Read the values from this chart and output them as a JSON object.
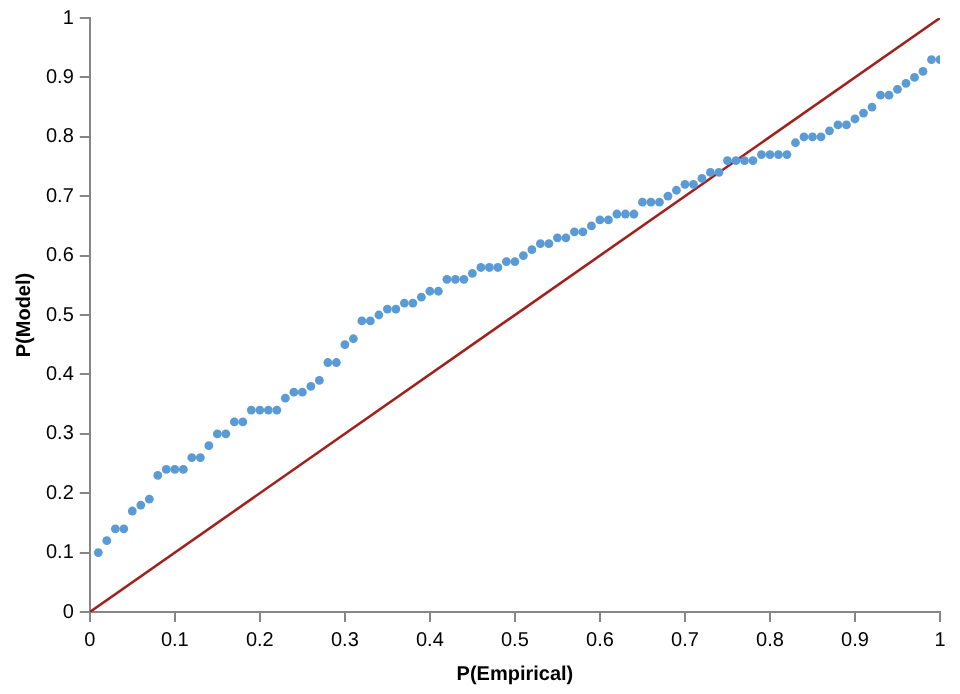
{
  "chart_data": {
    "type": "scatter",
    "xlabel": "P(Empirical)",
    "ylabel": "P(Model)",
    "xlim": [
      0,
      1
    ],
    "ylim": [
      0,
      1
    ],
    "xticks": [
      0,
      0.1,
      0.2,
      0.3,
      0.4,
      0.5,
      0.6,
      0.7,
      0.8,
      0.9,
      1
    ],
    "yticks": [
      0,
      0.1,
      0.2,
      0.3,
      0.4,
      0.5,
      0.6,
      0.7,
      0.8,
      0.9,
      1
    ],
    "grid": false,
    "legend": false,
    "marker": "circle",
    "series": [
      {
        "color": "#5b9bd5",
        "x": [
          0.01,
          0.02,
          0.03,
          0.04,
          0.05,
          0.06,
          0.07,
          0.08,
          0.09,
          0.1,
          0.11,
          0.12,
          0.13,
          0.14,
          0.15,
          0.16,
          0.17,
          0.18,
          0.19,
          0.2,
          0.21,
          0.22,
          0.23,
          0.24,
          0.25,
          0.26,
          0.27,
          0.28,
          0.29,
          0.3,
          0.31,
          0.32,
          0.33,
          0.34,
          0.35,
          0.36,
          0.37,
          0.38,
          0.39,
          0.4,
          0.41,
          0.42,
          0.43,
          0.44,
          0.45,
          0.46,
          0.47,
          0.48,
          0.49,
          0.5,
          0.51,
          0.52,
          0.53,
          0.54,
          0.55,
          0.56,
          0.57,
          0.58,
          0.59,
          0.6,
          0.61,
          0.62,
          0.63,
          0.64,
          0.65,
          0.66,
          0.67,
          0.68,
          0.69,
          0.7,
          0.71,
          0.72,
          0.73,
          0.74,
          0.75,
          0.76,
          0.77,
          0.78,
          0.79,
          0.8,
          0.81,
          0.82,
          0.83,
          0.84,
          0.85,
          0.86,
          0.87,
          0.88,
          0.89,
          0.9,
          0.91,
          0.92,
          0.93,
          0.94,
          0.95,
          0.96,
          0.97,
          0.98,
          0.99,
          1
        ],
        "values": [
          0.1,
          0.12,
          0.14,
          0.14,
          0.17,
          0.18,
          0.19,
          0.23,
          0.24,
          0.24,
          0.24,
          0.26,
          0.26,
          0.28,
          0.3,
          0.3,
          0.32,
          0.32,
          0.34,
          0.34,
          0.34,
          0.34,
          0.36,
          0.37,
          0.37,
          0.38,
          0.39,
          0.42,
          0.42,
          0.45,
          0.46,
          0.49,
          0.49,
          0.5,
          0.51,
          0.51,
          0.52,
          0.52,
          0.53,
          0.54,
          0.54,
          0.56,
          0.56,
          0.56,
          0.57,
          0.58,
          0.58,
          0.58,
          0.59,
          0.59,
          0.6,
          0.61,
          0.62,
          0.62,
          0.63,
          0.63,
          0.64,
          0.64,
          0.65,
          0.66,
          0.66,
          0.67,
          0.67,
          0.67,
          0.69,
          0.69,
          0.69,
          0.7,
          0.71,
          0.72,
          0.72,
          0.73,
          0.74,
          0.74,
          0.76,
          0.76,
          0.76,
          0.76,
          0.77,
          0.77,
          0.77,
          0.77,
          0.79,
          0.8,
          0.8,
          0.8,
          0.81,
          0.82,
          0.82,
          0.83,
          0.84,
          0.85,
          0.87,
          0.87,
          0.88,
          0.89,
          0.9,
          0.91,
          0.93,
          0.93
        ]
      },
      {
        "type": "line",
        "color": "#a0201c",
        "marker": "none",
        "x": [
          0,
          1
        ],
        "values": [
          0,
          1
        ]
      }
    ]
  }
}
